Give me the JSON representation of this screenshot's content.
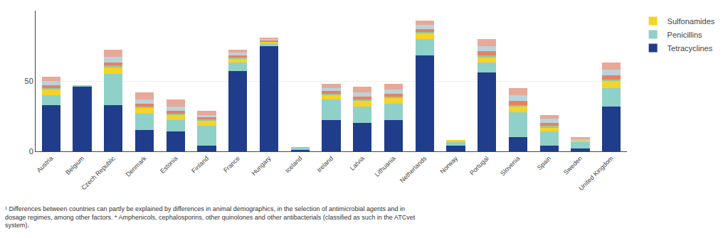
{
  "chart_data": {
    "type": "bar",
    "stacked": true,
    "categories": [
      "Austria",
      "Belgium",
      "Czech Republic",
      "Denmark",
      "Estonia",
      "Finland",
      "France",
      "Hungary",
      "Iceland",
      "Ireland",
      "Latvia",
      "Lithuania",
      "Netherlands",
      "Norway",
      "Portugal",
      "Slovenia",
      "Spain",
      "Sweden",
      "United Kingdom"
    ],
    "series": [
      {
        "name": "Tetracyclines",
        "color": "#1F3D8B",
        "values": [
          33,
          46,
          33,
          15,
          14,
          4,
          57,
          75,
          1,
          22,
          20,
          22,
          68,
          4,
          56,
          10,
          4,
          2,
          32
        ]
      },
      {
        "name": "Penicillins",
        "color": "#8FD0C8",
        "values": [
          7,
          1,
          22,
          12,
          8,
          14,
          6,
          2,
          2,
          15,
          12,
          12,
          12,
          3,
          7,
          18,
          10,
          5,
          13
        ]
      },
      {
        "name": "Sulfonamides",
        "color": "#F5D327",
        "values": [
          4,
          0,
          5,
          4,
          4,
          4,
          3,
          1,
          0,
          3,
          4,
          4,
          4,
          1,
          4,
          4,
          3,
          1,
          5
        ]
      },
      {
        "color": "#98C898",
        "values": [
          1,
          0,
          1,
          1,
          1,
          1,
          1,
          0,
          0,
          1,
          1,
          1,
          1,
          0,
          1,
          1,
          1,
          0,
          1
        ]
      },
      {
        "color": "#E88060",
        "values": [
          2,
          0,
          2,
          2,
          2,
          1,
          1,
          1,
          0,
          2,
          2,
          2,
          2,
          0,
          3,
          3,
          2,
          0,
          3
        ]
      },
      {
        "color": "#B8D4DC",
        "values": [
          3,
          0,
          4,
          3,
          3,
          2,
          2,
          1,
          0,
          2,
          3,
          3,
          3,
          0,
          4,
          4,
          3,
          1,
          4
        ]
      },
      {
        "color": "#E8A898",
        "values": [
          3,
          0,
          5,
          5,
          5,
          3,
          2,
          1,
          0,
          3,
          4,
          4,
          3,
          0,
          5,
          5,
          3,
          1,
          5
        ]
      }
    ],
    "ylim": [
      0,
      100
    ],
    "yticks": [
      0,
      50
    ],
    "grid": true,
    "legend": "upper right",
    "annotations": [
      "¹ Differences between countries can partly be explained by differences in animal demographics, in the selection of antimicrobial agents and in",
      "dosage regimes, among other factors. * Amphenicols, cephalosporins, other quinolones and other antibacterials (classified as such in the ATCvet",
      "system)."
    ]
  }
}
